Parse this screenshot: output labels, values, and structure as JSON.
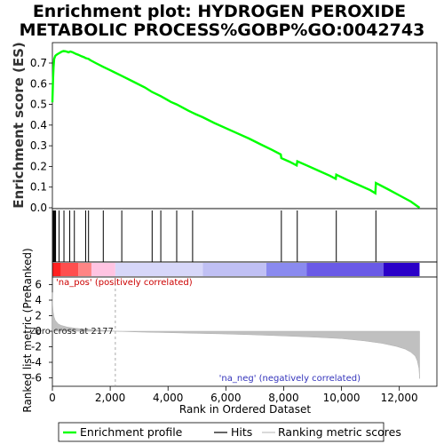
{
  "chart_data": {
    "type": "line",
    "title_line1": "Enrichment plot: HYDROGEN PEROXIDE",
    "title_line2": "METABOLIC PROCESS%GOBP%GO:0042743",
    "top_ylabel": "Enrichment score (ES)",
    "bottom_ylabel": "Ranked list metric (PreRanked)",
    "xlabel": "Rank in Ordered Dataset",
    "xlim": [
      0,
      13300
    ],
    "xticks": [
      0,
      2000,
      4000,
      6000,
      8000,
      10000,
      12000
    ],
    "xtick_labels": [
      "0",
      "2,000",
      "4,000",
      "6,000",
      "8,000",
      "10,000",
      "12,000"
    ],
    "es_ylim": [
      0,
      0.8
    ],
    "es_yticks": [
      0.0,
      0.1,
      0.2,
      0.3,
      0.4,
      0.5,
      0.6,
      0.7
    ],
    "es_ytick_labels": [
      "0.0",
      "0.1",
      "0.2",
      "0.3",
      "0.4",
      "0.5",
      "0.6",
      "0.7"
    ],
    "metric_ylim": [
      -6.5,
      7
    ],
    "metric_yticks": [
      -6,
      -4,
      -2,
      0,
      2,
      4,
      6
    ],
    "metric_ytick_labels": [
      "-6",
      "-4",
      "-2",
      "0",
      "2",
      "4",
      "6"
    ],
    "series": [
      {
        "name": "Enrichment profile",
        "color": "#00ff00",
        "x": [
          0,
          20,
          40,
          60,
          100,
          140,
          200,
          260,
          320,
          380,
          440,
          500,
          560,
          620,
          700,
          760,
          820,
          900,
          1000,
          1100,
          1150,
          1200,
          1250,
          1300,
          1500,
          1750,
          2000,
          2400,
          2800,
          3200,
          3450,
          3600,
          3750,
          3900,
          4100,
          4300,
          4500,
          4700,
          4850,
          4950,
          5200,
          5600,
          6000,
          6400,
          6800,
          7200,
          7600,
          7900,
          7920,
          8200,
          8450,
          8470,
          8800,
          9200,
          9600,
          9800,
          9820,
          10200,
          10600,
          11000,
          11170,
          11190,
          11600,
          12000,
          12400,
          12700
        ],
        "y": [
          0.51,
          0.62,
          0.68,
          0.72,
          0.735,
          0.74,
          0.745,
          0.75,
          0.755,
          0.758,
          0.757,
          0.755,
          0.752,
          0.756,
          0.752,
          0.748,
          0.744,
          0.74,
          0.733,
          0.728,
          0.724,
          0.722,
          0.72,
          0.715,
          0.7,
          0.682,
          0.665,
          0.638,
          0.61,
          0.582,
          0.56,
          0.55,
          0.54,
          0.528,
          0.512,
          0.5,
          0.485,
          0.47,
          0.46,
          0.453,
          0.438,
          0.41,
          0.385,
          0.36,
          0.335,
          0.307,
          0.28,
          0.258,
          0.24,
          0.223,
          0.205,
          0.225,
          0.205,
          0.18,
          0.155,
          0.14,
          0.16,
          0.135,
          0.11,
          0.085,
          0.07,
          0.12,
          0.09,
          0.06,
          0.03,
          0.0
        ]
      }
    ],
    "hits": [
      30,
      60,
      90,
      110,
      230,
      400,
      600,
      760,
      1150,
      1250,
      1760,
      2400,
      3450,
      3750,
      4300,
      4850,
      7920,
      8470,
      9820,
      11190
    ],
    "hits_label": "Hits",
    "ranking_metric": {
      "name": "Ranking metric scores",
      "x": [
        0,
        10,
        30,
        60,
        100,
        200,
        300,
        500,
        800,
        1200,
        1800,
        2177,
        3000,
        4000,
        5000,
        6000,
        7000,
        8000,
        9000,
        10000,
        10800,
        11400,
        11900,
        12200,
        12400,
        12550,
        12620,
        12680,
        12700
      ],
      "y": [
        5.0,
        3.3,
        2.4,
        1.8,
        1.4,
        0.95,
        0.75,
        0.55,
        0.38,
        0.25,
        0.1,
        0.0,
        -0.1,
        -0.18,
        -0.27,
        -0.36,
        -0.47,
        -0.6,
        -0.75,
        -0.95,
        -1.25,
        -1.55,
        -1.95,
        -2.3,
        -2.7,
        -3.2,
        -3.8,
        -4.8,
        -6.1
      ]
    },
    "zero_cross_label": "Zero cross at 2177",
    "zero_cross_x": 2177,
    "pos_label": "'na_pos' (positively correlated)",
    "neg_label": "'na_neg' (negatively correlated)",
    "pos_color": "#ff0000",
    "neg_color": "#3333cc",
    "heat_bands": [
      {
        "x0": 0,
        "x1": 300,
        "color": "#ff2020"
      },
      {
        "x0": 300,
        "x1": 900,
        "color": "#ff4f4f"
      },
      {
        "x0": 900,
        "x1": 1350,
        "color": "#ff8585"
      },
      {
        "x0": 1350,
        "x1": 2177,
        "color": "#ffc4e2"
      },
      {
        "x0": 2177,
        "x1": 5200,
        "color": "#d7d7f9"
      },
      {
        "x0": 5200,
        "x1": 7400,
        "color": "#c0c0f4"
      },
      {
        "x0": 7400,
        "x1": 8800,
        "color": "#8a8aef"
      },
      {
        "x0": 8800,
        "x1": 11450,
        "color": "#6a5ae6"
      },
      {
        "x0": 11450,
        "x1": 12700,
        "color": "#2a00c8"
      }
    ],
    "legend": [
      "Enrichment profile",
      "Hits",
      "Ranking metric scores"
    ]
  }
}
